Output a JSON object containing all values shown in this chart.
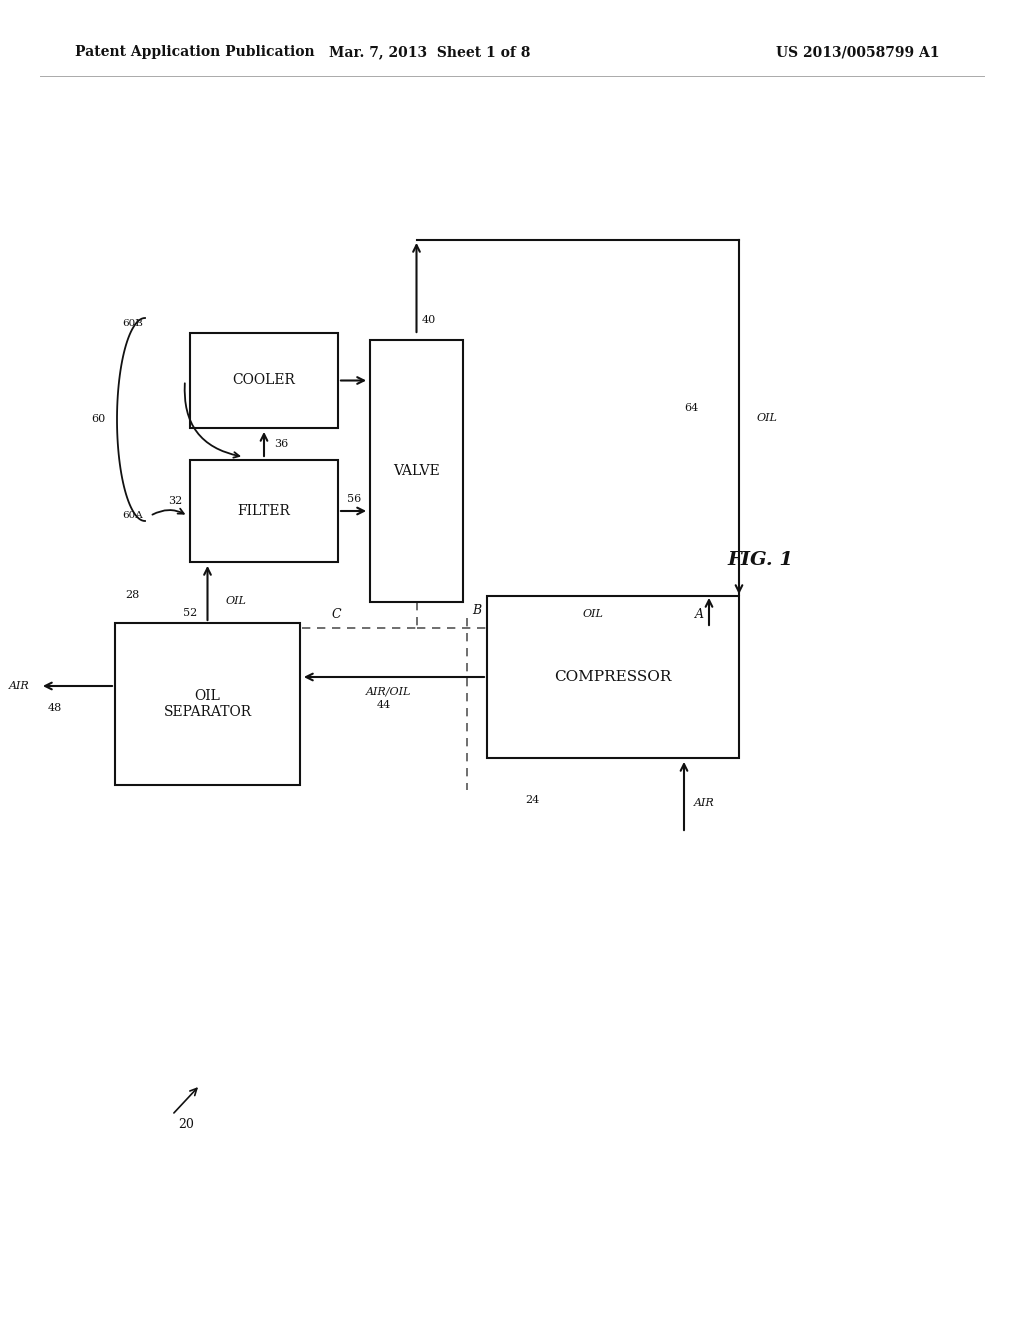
{
  "title_left": "Patent Application Publication",
  "title_center": "Mar. 7, 2013  Sheet 1 of 8",
  "title_right": "US 2013/0058799 A1",
  "background_color": "#ffffff",
  "text_color": "#111111"
}
